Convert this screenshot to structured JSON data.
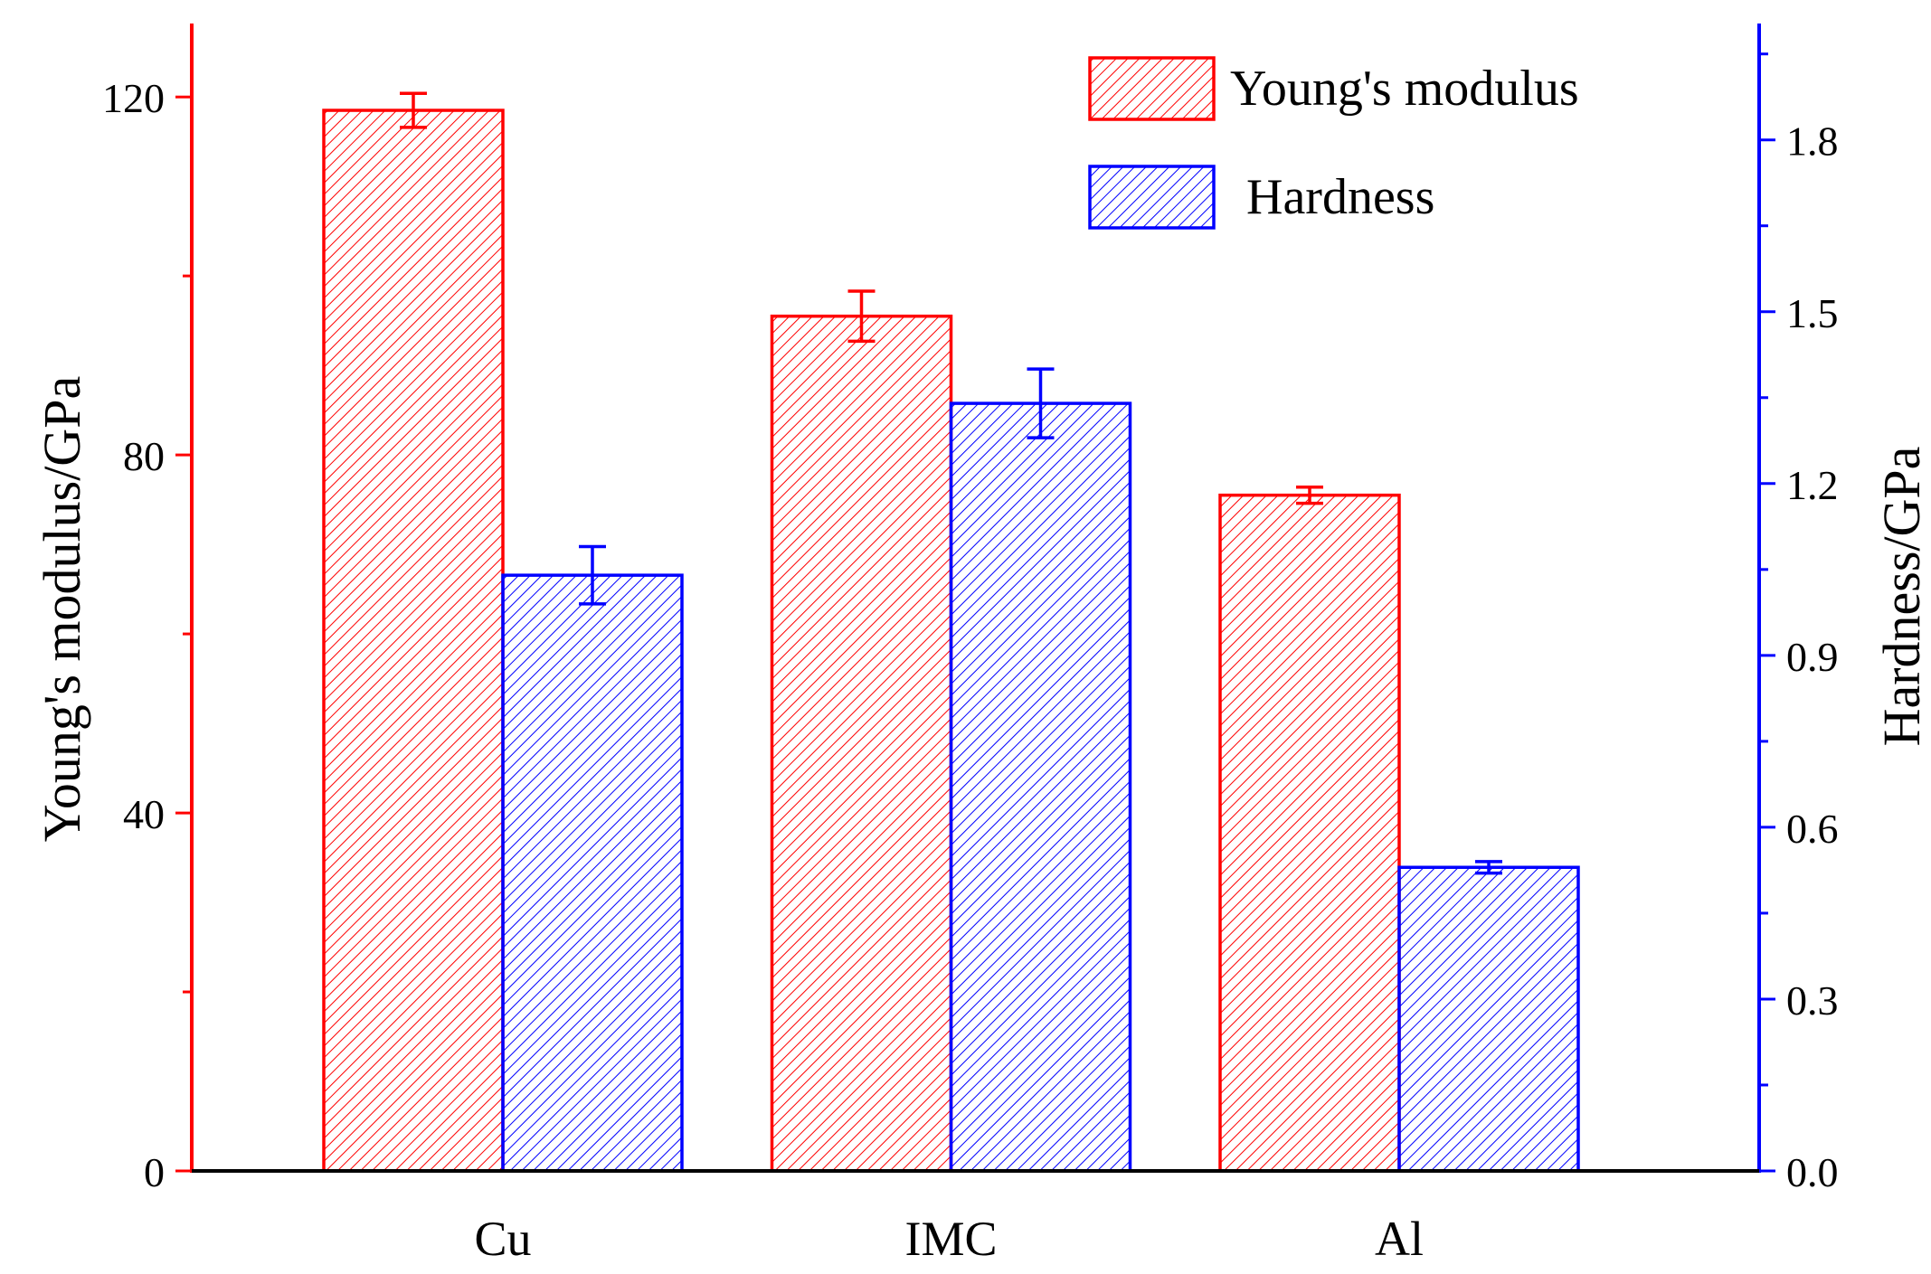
{
  "chart_data": {
    "type": "bar",
    "categories": [
      "Cu",
      "IMC",
      "Al"
    ],
    "series": [
      {
        "name": "Young's modulus",
        "axis": "left",
        "color": "#ff0000",
        "values": [
          118.5,
          95.5,
          75.5
        ],
        "errors": [
          1.9,
          2.8,
          0.9
        ]
      },
      {
        "name": "Hardness",
        "axis": "right",
        "color": "#0000ff",
        "values": [
          1.04,
          1.34,
          0.53
        ],
        "errors": [
          0.05,
          0.06,
          0.01
        ]
      }
    ],
    "left_axis": {
      "label": "Young's modulus/GPa",
      "color": "#ff0000",
      "range": [
        0,
        128
      ],
      "major_ticks": [
        0,
        40,
        80,
        120
      ],
      "tick_labels": [
        "0",
        "40",
        "80",
        "120"
      ],
      "minor_ticks": [
        20,
        60,
        100
      ]
    },
    "right_axis": {
      "label": "Hardness/GPa",
      "color": "#0000ff",
      "range": [
        0,
        2.0
      ],
      "major_ticks": [
        0.0,
        0.3,
        0.6,
        0.9,
        1.2,
        1.5,
        1.8
      ],
      "tick_labels": [
        "0.0",
        "0.3",
        "0.6",
        "0.9",
        "1.2",
        "1.5",
        "1.8"
      ],
      "minor_ticks": [
        0.15,
        0.45,
        0.75,
        1.05,
        1.35,
        1.65,
        1.95
      ]
    },
    "legend_position": "top-right",
    "grid": false
  }
}
